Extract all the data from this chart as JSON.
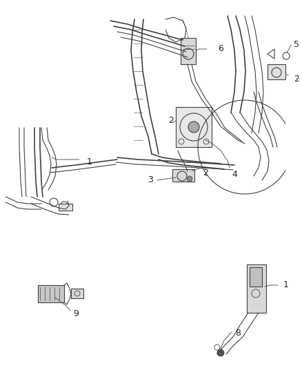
{
  "bg_color": "#ffffff",
  "line_color": "#404040",
  "label_color": "#222222",
  "figsize": [
    4.38,
    5.33
  ],
  "dpi": 100
}
